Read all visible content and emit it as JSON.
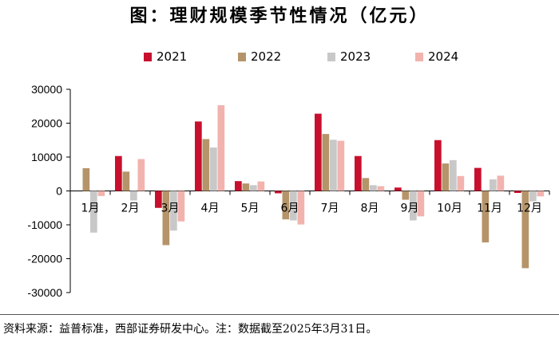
{
  "title": "图：理财规模季节性情况（亿元）",
  "footnote": "资料来源：益普标准，西部证券研发中心。注：数据截至2025年3月31日。",
  "colors": {
    "2021": "#c8102e",
    "2022": "#b5946a",
    "2023": "#c8c8c8",
    "2024": "#f2b3ae"
  },
  "chart_data": {
    "type": "bar",
    "categories": [
      "1月",
      "2月",
      "3月",
      "4月",
      "5月",
      "6月",
      "7月",
      "8月",
      "9月",
      "10月",
      "11月",
      "12月"
    ],
    "series": [
      {
        "name": "2021",
        "values": [
          0,
          10300,
          -5000,
          20500,
          2900,
          -700,
          22800,
          10300,
          1000,
          15000,
          6800,
          -600
        ]
      },
      {
        "name": "2022",
        "values": [
          6700,
          5700,
          -16000,
          15300,
          2200,
          -8400,
          16800,
          3800,
          -2600,
          8100,
          -15200,
          -22800
        ]
      },
      {
        "name": "2023",
        "values": [
          -12300,
          -2800,
          -11700,
          12800,
          1700,
          -8700,
          15100,
          1700,
          -8700,
          9100,
          3400,
          -3100
        ]
      },
      {
        "name": "2024",
        "values": [
          -1500,
          9400,
          -9000,
          25300,
          2800,
          -9900,
          14800,
          1400,
          -7500,
          4400,
          4500,
          -1600
        ]
      }
    ],
    "yticks": [
      "30000",
      "20000",
      "10000",
      "0",
      "-10000",
      "-20000",
      "-30000"
    ],
    "ylim": [
      -30000,
      30000
    ],
    "legend": "top",
    "grid": false
  }
}
